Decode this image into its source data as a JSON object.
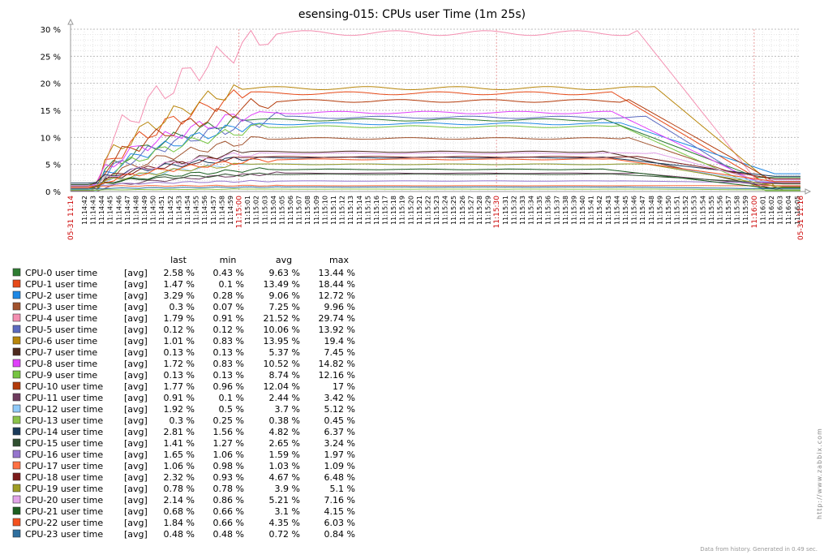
{
  "chart_data": {
    "type": "line",
    "title": "esensing-015: CPUs user Time (1m 25s)",
    "ylim": [
      0,
      30
    ],
    "y_ticks": [
      "30 %",
      "25 %",
      "20 %",
      "15 %",
      "10 %",
      "5 %",
      "0 %"
    ],
    "x_tick_labels": [
      "11:14:42",
      "11:14:43",
      "11:14:44",
      "11:14:45",
      "11:14:46",
      "11:14:47",
      "11:14:48",
      "11:14:49",
      "11:14:50",
      "11:14:51",
      "11:14:52",
      "11:14:53",
      "11:14:54",
      "11:14:55",
      "11:14:56",
      "11:14:57",
      "11:14:58",
      "11:14:59",
      "11:15:01",
      "11:15:02",
      "11:15:03",
      "11:15:04",
      "11:15:05",
      "11:15:06",
      "11:15:07",
      "11:15:08",
      "11:15:09",
      "11:15:10",
      "11:15:11",
      "11:15:12",
      "11:15:13",
      "11:15:14",
      "11:15:15",
      "11:15:16",
      "11:15:17",
      "11:15:18",
      "11:15:19",
      "11:15:20",
      "11:15:21",
      "11:15:22",
      "11:15:23",
      "11:15:24",
      "11:15:25",
      "11:15:26",
      "11:15:27",
      "11:15:28",
      "11:15:29",
      "11:15:31",
      "11:15:32",
      "11:15:33",
      "11:15:34",
      "11:15:35",
      "11:15:36",
      "11:15:37",
      "11:15:38",
      "11:15:39",
      "11:15:40",
      "11:15:41",
      "11:15:42",
      "11:15:43",
      "11:15:44",
      "11:15:45",
      "11:15:46",
      "11:15:47",
      "11:15:48",
      "11:15:49",
      "11:15:50",
      "11:15:51",
      "11:15:52",
      "11:15:53",
      "11:15:54",
      "11:15:55",
      "11:15:56",
      "11:15:57",
      "11:15:58",
      "11:15:59",
      "11:16:01",
      "11:16:02",
      "11:16:03",
      "11:16:04",
      "11:16:05"
    ],
    "x_major_labels": [
      "05-31 11:14",
      "11:15:00",
      "11:15:30",
      "11:16:00",
      "05-31 11:16"
    ],
    "legend_header": {
      "last": "last",
      "min": "min",
      "avg": "avg",
      "max": "max"
    },
    "legend_func": "[avg]",
    "series": [
      {
        "name": "CPU-0 user time",
        "color": "#2e7d32",
        "last": "2.58 %",
        "min": "0.43 %",
        "avg": "9.63 %",
        "max": "13.44 %"
      },
      {
        "name": "CPU-1 user time",
        "color": "#e64a19",
        "last": "1.47 %",
        "min": "0.1 %",
        "avg": "13.49 %",
        "max": "18.44 %"
      },
      {
        "name": "CPU-2 user time",
        "color": "#1e88e5",
        "last": "3.29 %",
        "min": "0.28 %",
        "avg": "9.06 %",
        "max": "12.72 %"
      },
      {
        "name": "CPU-3 user time",
        "color": "#a0522d",
        "last": "0.3 %",
        "min": "0.07 %",
        "avg": "7.25 %",
        "max": "9.96 %"
      },
      {
        "name": "CPU-4 user time",
        "color": "#f48fb1",
        "last": "1.79 %",
        "min": "0.91 %",
        "avg": "21.52 %",
        "max": "29.74 %"
      },
      {
        "name": "CPU-5 user time",
        "color": "#5c6bc0",
        "last": "0.12 %",
        "min": "0.12 %",
        "avg": "10.06 %",
        "max": "13.92 %"
      },
      {
        "name": "CPU-6 user time",
        "color": "#b8860b",
        "last": "1.01 %",
        "min": "0.83 %",
        "avg": "13.95 %",
        "max": "19.4 %"
      },
      {
        "name": "CPU-7 user time",
        "color": "#4e2a1e",
        "last": "0.13 %",
        "min": "0.13 %",
        "avg": "5.37 %",
        "max": "7.45 %"
      },
      {
        "name": "CPU-8 user time",
        "color": "#e040fb",
        "last": "1.72 %",
        "min": "0.83 %",
        "avg": "10.52 %",
        "max": "14.82 %"
      },
      {
        "name": "CPU-9 user time",
        "color": "#76c442",
        "last": "0.13 %",
        "min": "0.13 %",
        "avg": "8.74 %",
        "max": "12.16 %"
      },
      {
        "name": "CPU-10 user time",
        "color": "#b33a0a",
        "last": "1.77 %",
        "min": "0.96 %",
        "avg": "12.04 %",
        "max": "17 %"
      },
      {
        "name": "CPU-11 user time",
        "color": "#6d3b5e",
        "last": "0.91 %",
        "min": "0.1 %",
        "avg": "2.44 %",
        "max": "3.42 %"
      },
      {
        "name": "CPU-12 user time",
        "color": "#90caf9",
        "last": "1.92 %",
        "min": "0.5 %",
        "avg": "3.7 %",
        "max": "5.12 %"
      },
      {
        "name": "CPU-13 user time",
        "color": "#8bc34a",
        "last": "0.3 %",
        "min": "0.25 %",
        "avg": "0.38 %",
        "max": "0.45 %"
      },
      {
        "name": "CPU-14 user time",
        "color": "#1a3a5a",
        "last": "2.81 %",
        "min": "1.56 %",
        "avg": "4.82 %",
        "max": "6.37 %"
      },
      {
        "name": "CPU-15 user time",
        "color": "#2f4f2f",
        "last": "1.41 %",
        "min": "1.27 %",
        "avg": "2.65 %",
        "max": "3.24 %"
      },
      {
        "name": "CPU-16 user time",
        "color": "#9575cd",
        "last": "1.65 %",
        "min": "1.06 %",
        "avg": "1.59 %",
        "max": "1.97 %"
      },
      {
        "name": "CPU-17 user time",
        "color": "#ff7043",
        "last": "1.06 %",
        "min": "0.98 %",
        "avg": "1.03 %",
        "max": "1.09 %"
      },
      {
        "name": "CPU-18 user time",
        "color": "#7b1a1a",
        "last": "2.32 %",
        "min": "0.93 %",
        "avg": "4.67 %",
        "max": "6.48 %"
      },
      {
        "name": "CPU-19 user time",
        "color": "#9e9d24",
        "last": "0.78 %",
        "min": "0.78 %",
        "avg": "3.9 %",
        "max": "5.1 %"
      },
      {
        "name": "CPU-20 user time",
        "color": "#e1a3e8",
        "last": "2.14 %",
        "min": "0.86 %",
        "avg": "5.21 %",
        "max": "7.16 %"
      },
      {
        "name": "CPU-21 user time",
        "color": "#1b5e20",
        "last": "0.68 %",
        "min": "0.66 %",
        "avg": "3.1 %",
        "max": "4.15 %"
      },
      {
        "name": "CPU-22 user time",
        "color": "#f4511e",
        "last": "1.84 %",
        "min": "0.66 %",
        "avg": "4.35 %",
        "max": "6.03 %"
      },
      {
        "name": "CPU-23 user time",
        "color": "#2e6f9e",
        "last": "0.48 %",
        "min": "0.48 %",
        "avg": "0.72 %",
        "max": "0.84 %"
      }
    ]
  },
  "side_text": "http://www.zabbix.com",
  "footer": "Data from history. Generated in 0.49 sec."
}
